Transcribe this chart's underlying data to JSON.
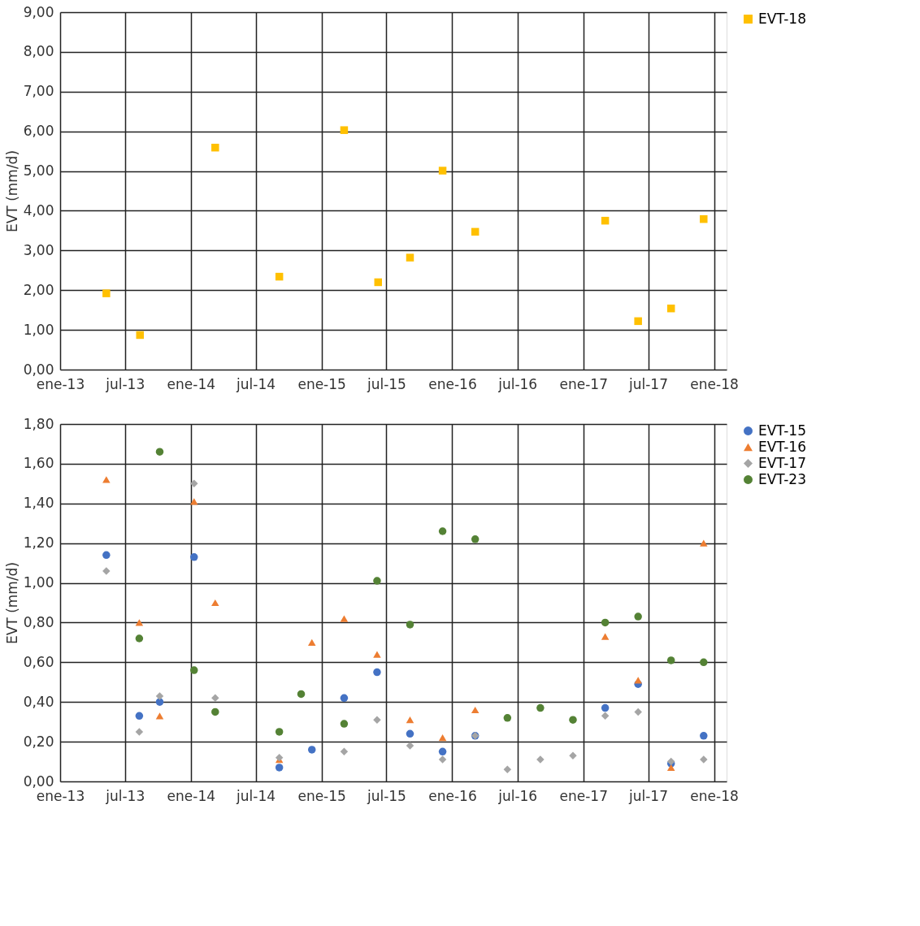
{
  "chart_data": [
    {
      "type": "scatter",
      "ylabel": "EVT (mm/d)",
      "legend": "right",
      "grid": true,
      "xlim": [
        "2013-01-01",
        "2018-02-05"
      ],
      "xticks": [
        {
          "value": "2013-01-01",
          "label": "ene-13"
        },
        {
          "value": "2013-07-01",
          "label": "jul-13"
        },
        {
          "value": "2014-01-01",
          "label": "ene-14"
        },
        {
          "value": "2014-07-01",
          "label": "jul-14"
        },
        {
          "value": "2015-01-01",
          "label": "ene-15"
        },
        {
          "value": "2015-07-01",
          "label": "jul-15"
        },
        {
          "value": "2016-01-01",
          "label": "ene-16"
        },
        {
          "value": "2016-07-01",
          "label": "jul-16"
        },
        {
          "value": "2017-01-01",
          "label": "ene-17"
        },
        {
          "value": "2017-07-01",
          "label": "jul-17"
        },
        {
          "value": "2018-01-01",
          "label": "ene-18"
        }
      ],
      "ylim": [
        0,
        9
      ],
      "yticks": [
        {
          "value": 0,
          "label": "0,00"
        },
        {
          "value": 1,
          "label": "1,00"
        },
        {
          "value": 2,
          "label": "2,00"
        },
        {
          "value": 3,
          "label": "3,00"
        },
        {
          "value": 4,
          "label": "4,00"
        },
        {
          "value": 5,
          "label": "5,00"
        },
        {
          "value": 6,
          "label": "6,00"
        },
        {
          "value": 7,
          "label": "7,00"
        },
        {
          "value": 8,
          "label": "8,00"
        },
        {
          "value": 9,
          "label": "9,00"
        }
      ],
      "series": [
        {
          "name": "EVT-18",
          "color": "#ffc000",
          "marker": "square",
          "x": [
            "2013-05-10",
            "2013-08-12",
            "2014-03-10",
            "2014-09-05",
            "2015-03-05",
            "2015-06-08",
            "2015-09-05",
            "2015-12-05",
            "2016-03-05",
            "2017-03-03",
            "2017-06-03",
            "2017-09-03",
            "2017-12-03"
          ],
          "values": [
            1.92,
            0.87,
            5.59,
            2.34,
            6.03,
            2.2,
            2.82,
            5.01,
            3.47,
            3.75,
            1.22,
            1.54,
            3.79
          ]
        }
      ]
    },
    {
      "type": "scatter",
      "ylabel": "EVT (mm/d)",
      "legend": "right",
      "grid": true,
      "xlim": [
        "2013-01-01",
        "2018-02-05"
      ],
      "xticks": [
        {
          "value": "2013-01-01",
          "label": "ene-13"
        },
        {
          "value": "2013-07-01",
          "label": "jul-13"
        },
        {
          "value": "2014-01-01",
          "label": "ene-14"
        },
        {
          "value": "2014-07-01",
          "label": "jul-14"
        },
        {
          "value": "2015-01-01",
          "label": "ene-15"
        },
        {
          "value": "2015-07-01",
          "label": "jul-15"
        },
        {
          "value": "2016-01-01",
          "label": "ene-16"
        },
        {
          "value": "2016-07-01",
          "label": "jul-16"
        },
        {
          "value": "2017-01-01",
          "label": "ene-17"
        },
        {
          "value": "2017-07-01",
          "label": "jul-17"
        },
        {
          "value": "2018-01-01",
          "label": "ene-18"
        }
      ],
      "ylim": [
        0,
        1.8
      ],
      "yticks": [
        {
          "value": 0,
          "label": "0,00"
        },
        {
          "value": 0.2,
          "label": "0,20"
        },
        {
          "value": 0.4,
          "label": "0,40"
        },
        {
          "value": 0.6,
          "label": "0,60"
        },
        {
          "value": 0.8,
          "label": "0,80"
        },
        {
          "value": 1.0,
          "label": "1,00"
        },
        {
          "value": 1.2,
          "label": "1,20"
        },
        {
          "value": 1.4,
          "label": "1,40"
        },
        {
          "value": 1.6,
          "label": "1,60"
        },
        {
          "value": 1.8,
          "label": "1,80"
        }
      ],
      "series": [
        {
          "name": "EVT-15",
          "color": "#4472c4",
          "marker": "circle",
          "x": [
            "2013-05-10",
            "2013-08-10",
            "2013-10-06",
            "2014-01-10",
            "2014-09-05",
            "2014-12-05",
            "2015-03-05",
            "2015-06-05",
            "2015-09-05",
            "2015-12-05",
            "2016-03-05",
            "2017-03-03",
            "2017-06-03",
            "2017-09-03",
            "2017-12-03"
          ],
          "values": [
            1.14,
            0.33,
            0.4,
            1.13,
            0.07,
            0.16,
            0.42,
            0.55,
            0.24,
            0.15,
            0.23,
            0.37,
            0.49,
            0.09,
            0.23
          ]
        },
        {
          "name": "EVT-16",
          "color": "#ed7d31",
          "marker": "triangle",
          "x": [
            "2013-05-10",
            "2013-08-10",
            "2013-10-06",
            "2014-01-10",
            "2014-03-10",
            "2014-09-05",
            "2014-12-05",
            "2015-03-05",
            "2015-06-05",
            "2015-09-05",
            "2015-12-05",
            "2016-03-05",
            "2017-03-03",
            "2017-06-03",
            "2017-09-03",
            "2017-12-03"
          ],
          "values": [
            1.52,
            0.8,
            0.33,
            1.41,
            0.9,
            0.11,
            0.7,
            0.82,
            0.64,
            0.31,
            0.22,
            0.36,
            0.73,
            0.51,
            0.07,
            1.2
          ]
        },
        {
          "name": "EVT-17",
          "color": "#a5a5a5",
          "marker": "diamond",
          "x": [
            "2013-05-10",
            "2013-08-10",
            "2013-10-06",
            "2014-01-10",
            "2014-03-10",
            "2014-09-05",
            "2015-03-05",
            "2015-06-05",
            "2015-09-05",
            "2015-12-05",
            "2016-03-05",
            "2016-06-03",
            "2016-09-03",
            "2016-12-03",
            "2017-03-03",
            "2017-06-03",
            "2017-09-03",
            "2017-12-03"
          ],
          "values": [
            1.06,
            0.25,
            0.43,
            1.5,
            0.42,
            0.12,
            0.15,
            0.31,
            0.18,
            0.11,
            0.23,
            0.06,
            0.11,
            0.13,
            0.33,
            0.35,
            0.1,
            0.11
          ]
        },
        {
          "name": "EVT-23",
          "color": "#548235",
          "marker": "circle",
          "x": [
            "2013-08-10",
            "2013-10-06",
            "2014-01-10",
            "2014-03-10",
            "2014-09-05",
            "2014-11-05",
            "2015-03-05",
            "2015-06-05",
            "2015-09-05",
            "2015-12-05",
            "2016-03-05",
            "2016-06-03",
            "2016-09-03",
            "2016-12-03",
            "2017-03-03",
            "2017-06-03",
            "2017-09-03",
            "2017-12-03"
          ],
          "values": [
            0.72,
            1.66,
            0.56,
            0.35,
            0.25,
            0.44,
            0.29,
            1.01,
            0.79,
            1.26,
            1.22,
            0.32,
            0.37,
            0.31,
            0.8,
            0.83,
            0.61,
            0.6
          ]
        }
      ]
    }
  ]
}
